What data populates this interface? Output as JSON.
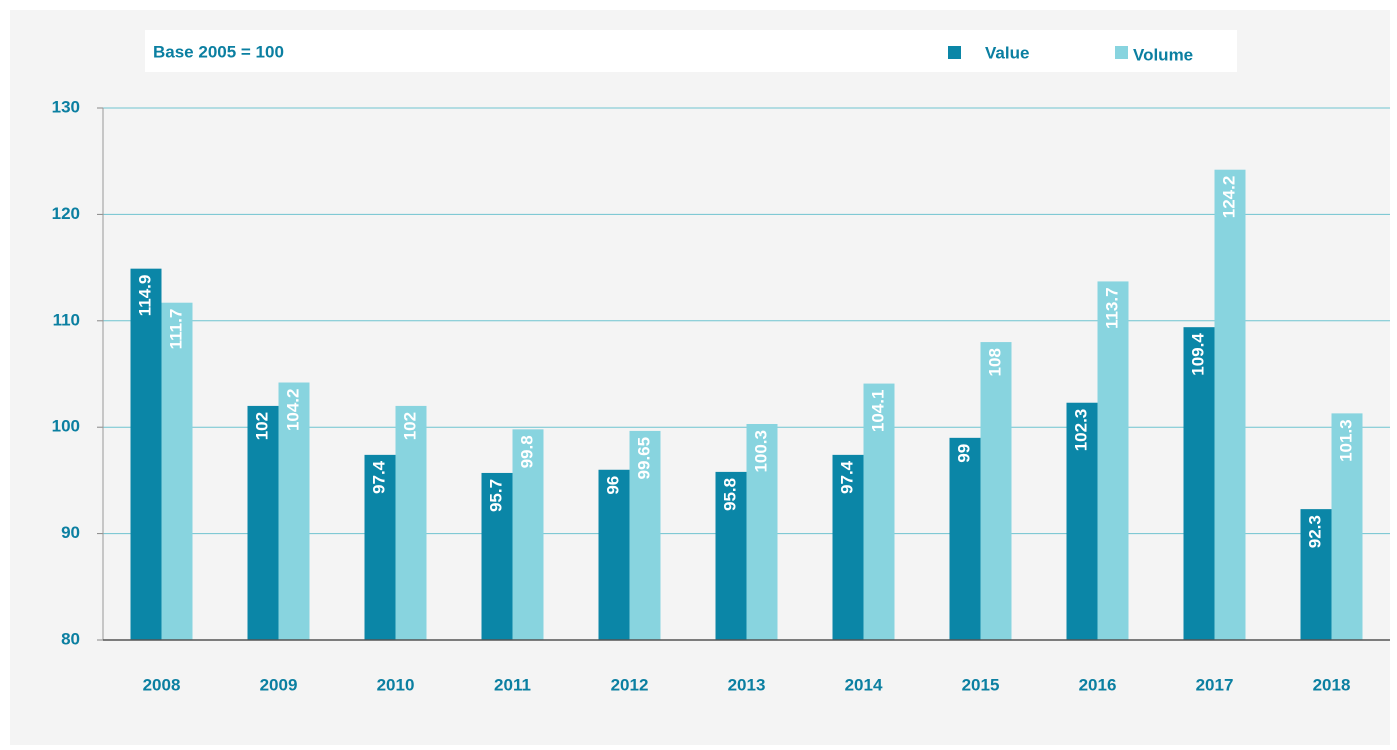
{
  "chart_data": {
    "type": "bar",
    "subtitle": "Base 2005 = 100",
    "categories": [
      "2008",
      "2009",
      "2010",
      "2011",
      "2012",
      "2013",
      "2014",
      "2015",
      "2016",
      "2017",
      "2018"
    ],
    "series": [
      {
        "name": "Value",
        "color": "#0b86a7",
        "values": [
          114.9,
          102,
          97.4,
          95.7,
          96,
          95.8,
          97.4,
          99,
          102.3,
          109.4,
          92.3
        ]
      },
      {
        "name": "Volume",
        "color": "#88d4df",
        "values": [
          111.7,
          104.2,
          102,
          99.8,
          99.65,
          100.3,
          104.1,
          108,
          113.7,
          124.2,
          101.3
        ]
      }
    ],
    "ylim": [
      80,
      130
    ],
    "yticks": [
      80,
      90,
      100,
      110,
      120,
      130
    ],
    "grid": true,
    "legend": "top-right"
  }
}
